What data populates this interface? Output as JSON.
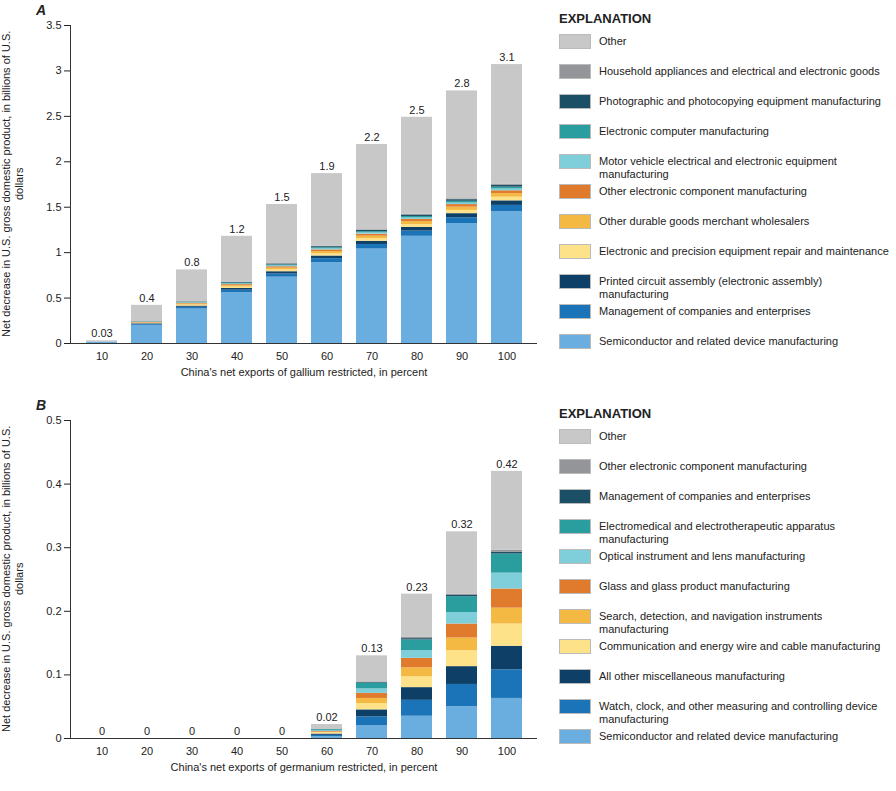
{
  "chart_data": [
    {
      "type": "bar",
      "title": "A",
      "stacked": true,
      "x_label": "China's net exports of gallium restricted, in percent",
      "y_label": "Net decrease in U.S. gross domestic product, in billions of U.S. dollars",
      "legend_title": "EXPLANATION",
      "categories": [
        10,
        20,
        30,
        40,
        50,
        60,
        70,
        80,
        90,
        100
      ],
      "ylim": [
        0,
        3.5
      ],
      "yticks": [
        0,
        0.5,
        1,
        1.5,
        2,
        2.5,
        3,
        3.5
      ],
      "totals": [
        0.03,
        0.4,
        0.8,
        1.2,
        1.5,
        1.9,
        2.2,
        2.5,
        2.8,
        3.1
      ],
      "series": [
        {
          "name": "Semiconductor and related device manufacturing",
          "color": "#6aaee0",
          "values": [
            0.014,
            0.2,
            0.38,
            0.56,
            0.73,
            0.89,
            1.04,
            1.18,
            1.32,
            1.45
          ]
        },
        {
          "name": "Management of companies and enterprises",
          "color": "#1b73b8",
          "values": [
            0.001,
            0.01,
            0.019,
            0.027,
            0.035,
            0.043,
            0.05,
            0.057,
            0.064,
            0.07
          ]
        },
        {
          "name": "Printed circuit assembly (electronic assembly) manufacturing",
          "color": "#0e3f66",
          "values": [
            0.001,
            0.007,
            0.013,
            0.019,
            0.025,
            0.03,
            0.035,
            0.04,
            0.045,
            0.05
          ]
        },
        {
          "name": "Electronic and precision equipment repair and maintenance",
          "color": "#fde28a",
          "values": [
            0,
            0.005,
            0.011,
            0.015,
            0.02,
            0.024,
            0.028,
            0.032,
            0.036,
            0.04
          ]
        },
        {
          "name": "Other durable goods merchant wholesalers",
          "color": "#f4b942",
          "values": [
            0,
            0.005,
            0.011,
            0.015,
            0.02,
            0.024,
            0.028,
            0.032,
            0.036,
            0.04
          ]
        },
        {
          "name": "Other electronic component manufacturing",
          "color": "#e07b2e",
          "values": [
            0,
            0.004,
            0.008,
            0.012,
            0.015,
            0.019,
            0.022,
            0.025,
            0.028,
            0.031
          ]
        },
        {
          "name": "Motor vehicle electrical and electronic equipment manufacturing",
          "color": "#7fcfda",
          "values": [
            0,
            0.003,
            0.005,
            0.008,
            0.01,
            0.012,
            0.014,
            0.016,
            0.018,
            0.02
          ]
        },
        {
          "name": "Electronic computer manufacturing",
          "color": "#2a9d9f",
          "values": [
            0,
            0.003,
            0.005,
            0.008,
            0.01,
            0.012,
            0.014,
            0.016,
            0.018,
            0.02
          ]
        },
        {
          "name": "Photographic and photocopying equipment manufacturing",
          "color": "#1b4f66",
          "values": [
            0,
            0.003,
            0.005,
            0.008,
            0.01,
            0.012,
            0.014,
            0.016,
            0.018,
            0.02
          ]
        },
        {
          "name": "Household appliances and electrical and electronic goods",
          "color": "#939598",
          "values": [
            0,
            0.001,
            0.003,
            0.004,
            0.005,
            0.006,
            0.007,
            0.008,
            0.009,
            0.01
          ]
        },
        {
          "name": "Other",
          "color": "#c8c8c8",
          "values": [
            0.014,
            0.179,
            0.35,
            0.504,
            0.65,
            0.798,
            0.938,
            1.068,
            1.188,
            1.319
          ]
        }
      ]
    },
    {
      "type": "bar",
      "title": "B",
      "stacked": true,
      "x_label": "China's net exports of germanium restricted, in percent",
      "y_label": "Net decrease in U.S. gross domestic product, in billions of U.S. dollars",
      "legend_title": "EXPLANATION",
      "categories": [
        10,
        20,
        30,
        40,
        50,
        60,
        70,
        80,
        90,
        100
      ],
      "ylim": [
        0,
        0.5
      ],
      "yticks": [
        0,
        0.1,
        0.2,
        0.3,
        0.4,
        0.5
      ],
      "totals": [
        0,
        0,
        0,
        0,
        0,
        0.02,
        0.13,
        0.23,
        0.32,
        0.42
      ],
      "series": [
        {
          "name": "Semiconductor and related device manufacturing",
          "color": "#6aaee0",
          "values": [
            0,
            0,
            0,
            0,
            0,
            0.003,
            0.02,
            0.035,
            0.05,
            0.063
          ]
        },
        {
          "name": "Watch, clock, and other measuring and controlling device manufacturing",
          "color": "#1b73b8",
          "values": [
            0,
            0,
            0,
            0,
            0,
            0.002,
            0.014,
            0.025,
            0.035,
            0.045
          ]
        },
        {
          "name": "All other miscellaneous manufacturing",
          "color": "#0e3f66",
          "values": [
            0,
            0,
            0,
            0,
            0,
            0.002,
            0.011,
            0.02,
            0.028,
            0.037
          ]
        },
        {
          "name": "Communication and energy wire and cable manufacturing",
          "color": "#fde28a",
          "values": [
            0,
            0,
            0,
            0,
            0,
            0.002,
            0.01,
            0.017,
            0.025,
            0.035
          ]
        },
        {
          "name": "Search, detection, and navigation instruments manufacturing",
          "color": "#f4b942",
          "values": [
            0,
            0,
            0,
            0,
            0,
            0.001,
            0.008,
            0.014,
            0.02,
            0.025
          ]
        },
        {
          "name": "Glass and glass product manufacturing",
          "color": "#e07b2e",
          "values": [
            0,
            0,
            0,
            0,
            0,
            0.001,
            0.008,
            0.015,
            0.022,
            0.03
          ]
        },
        {
          "name": "Optical instrument and lens manufacturing",
          "color": "#7fcfda",
          "values": [
            0,
            0,
            0,
            0,
            0,
            0.001,
            0.007,
            0.012,
            0.018,
            0.025
          ]
        },
        {
          "name": "Electromedical and electrotherapeutic apparatus manufacturing",
          "color": "#2a9d9f",
          "values": [
            0,
            0,
            0,
            0,
            0,
            0.002,
            0.009,
            0.017,
            0.025,
            0.03
          ]
        },
        {
          "name": "Management of companies and enterprises",
          "color": "#1b4f66",
          "values": [
            0,
            0,
            0,
            0,
            0,
            0,
            0.001,
            0.002,
            0.002,
            0.003
          ]
        },
        {
          "name": "Other electronic component manufacturing",
          "color": "#939598",
          "values": [
            0,
            0,
            0,
            0,
            0,
            0,
            0.001,
            0.002,
            0.002,
            0.003
          ]
        },
        {
          "name": "Other",
          "color": "#c8c8c8",
          "values": [
            0,
            0,
            0,
            0,
            0,
            0.008,
            0.041,
            0.068,
            0.098,
            0.124
          ]
        }
      ]
    }
  ]
}
